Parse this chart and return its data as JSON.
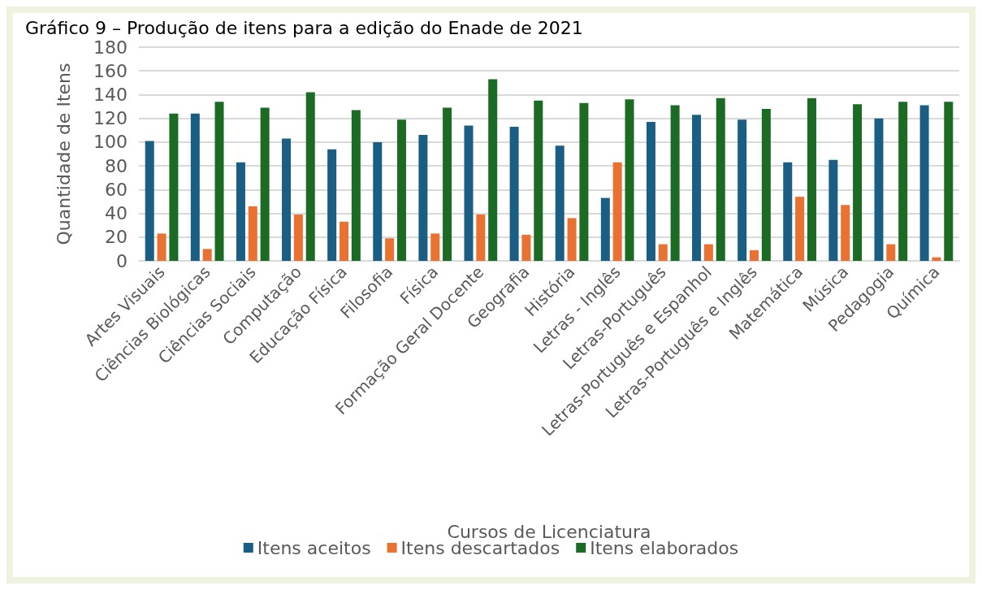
{
  "chart_data": {
    "type": "bar",
    "title": "Gráfico 9 – Produção de itens para a edição do Enade de 2021",
    "xlabel": "Cursos de Licenciatura",
    "ylabel": "Quantidade de Itens",
    "categories": [
      "Artes Visuais",
      "Ciências Biológicas",
      "Ciências Sociais",
      "Computação",
      "Educação Física",
      "Filosofia",
      "Física",
      "Formação Geral Docente",
      "Geografia",
      "História",
      "Letras - Inglês",
      "Letras-Português",
      "Letras-Português e Espanhol",
      "Letras-Português e Inglês",
      "Matemática",
      "Música",
      "Pedagogia",
      "Química"
    ],
    "series": [
      {
        "name": "Itens aceitos",
        "color": "#1a5e83",
        "values": [
          101,
          124,
          83,
          103,
          94,
          100,
          106,
          114,
          113,
          97,
          53,
          117,
          123,
          119,
          83,
          85,
          120,
          131
        ]
      },
      {
        "name": "Itens descartados",
        "color": "#e97132",
        "values": [
          23,
          10,
          46,
          39,
          33,
          19,
          23,
          39,
          22,
          36,
          83,
          14,
          14,
          9,
          54,
          47,
          14,
          3
        ]
      },
      {
        "name": "Itens elaborados",
        "color": "#1b6b24",
        "values": [
          124,
          134,
          129,
          142,
          127,
          119,
          129,
          153,
          135,
          133,
          136,
          131,
          137,
          128,
          137,
          132,
          134,
          134
        ]
      }
    ],
    "ylim": [
      0,
      180
    ],
    "yticks": [
      0,
      20,
      40,
      60,
      80,
      100,
      120,
      140,
      160,
      180
    ],
    "grid": "y",
    "legend": "bottom"
  }
}
